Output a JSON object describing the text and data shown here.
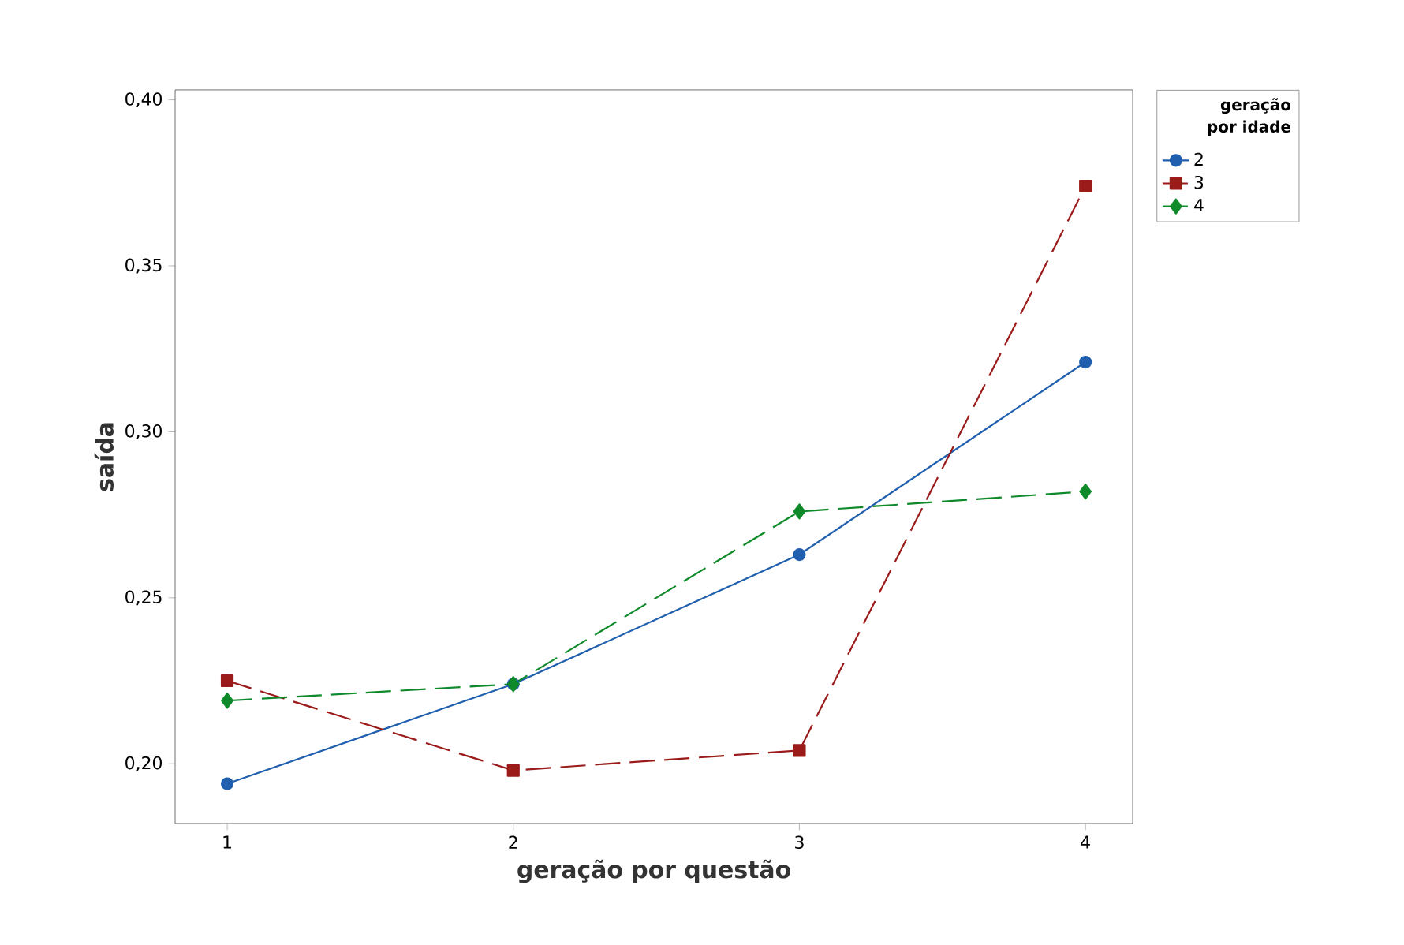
{
  "chart_data": {
    "type": "line",
    "xlabel": "geração por questão",
    "ylabel": "saída",
    "legend_title": "geração por idade",
    "legend": "top right",
    "grid": false,
    "x": [
      1,
      2,
      3,
      4
    ],
    "xlim": [
      0.818,
      4.165
    ],
    "xticks": [
      1,
      2,
      3,
      4
    ],
    "ylim": [
      0.182,
      0.403
    ],
    "yticks": [
      {
        "value": 0.2,
        "label": "0,20"
      },
      {
        "value": 0.25,
        "label": "0,25"
      },
      {
        "value": 0.3,
        "label": "0,30"
      },
      {
        "value": 0.35,
        "label": "0,35"
      },
      {
        "value": 0.4,
        "label": "0,40"
      }
    ],
    "series": [
      {
        "name": "2",
        "color": "#1f5fad",
        "values": [
          0.194,
          0.224,
          0.263,
          0.321
        ],
        "marker": "circle",
        "line_style": "solid"
      },
      {
        "name": "3",
        "color": "#9b1b1b",
        "values": [
          0.225,
          0.198,
          0.204,
          0.374
        ],
        "marker": "square",
        "line_style": "dashed"
      },
      {
        "name": "4",
        "color": "#0f8a2a",
        "values": [
          0.219,
          0.224,
          0.276,
          0.282
        ],
        "marker": "diamond",
        "line_style": "dashed"
      }
    ]
  }
}
